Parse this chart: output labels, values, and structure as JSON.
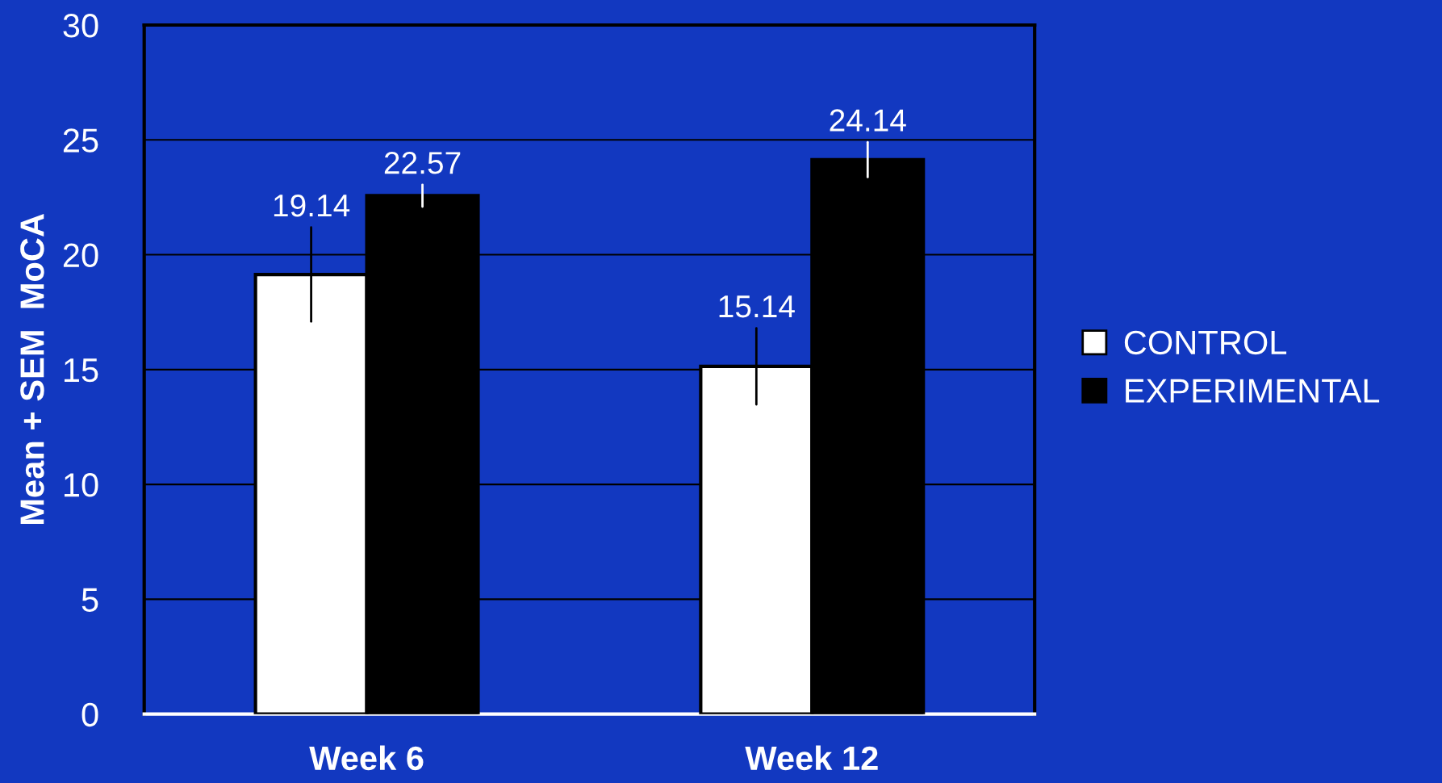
{
  "chart_data": {
    "type": "bar",
    "ylabel": "Mean + SEM  MoCA",
    "categories": [
      "Week 6",
      "Week 12"
    ],
    "series": [
      {
        "name": "CONTROL",
        "color": "#ffffff",
        "values": [
          19.14,
          15.14
        ],
        "errors": [
          2.05,
          1.66
        ]
      },
      {
        "name": "EXPERIMENTAL",
        "color": "#000000",
        "values": [
          22.57,
          24.14
        ],
        "errors": [
          0.48,
          0.76
        ]
      }
    ],
    "ylim": [
      0,
      30
    ],
    "yticks": [
      0,
      5,
      10,
      15,
      20,
      25,
      30
    ],
    "grid": "y",
    "legend": "right",
    "data_labels": true
  }
}
